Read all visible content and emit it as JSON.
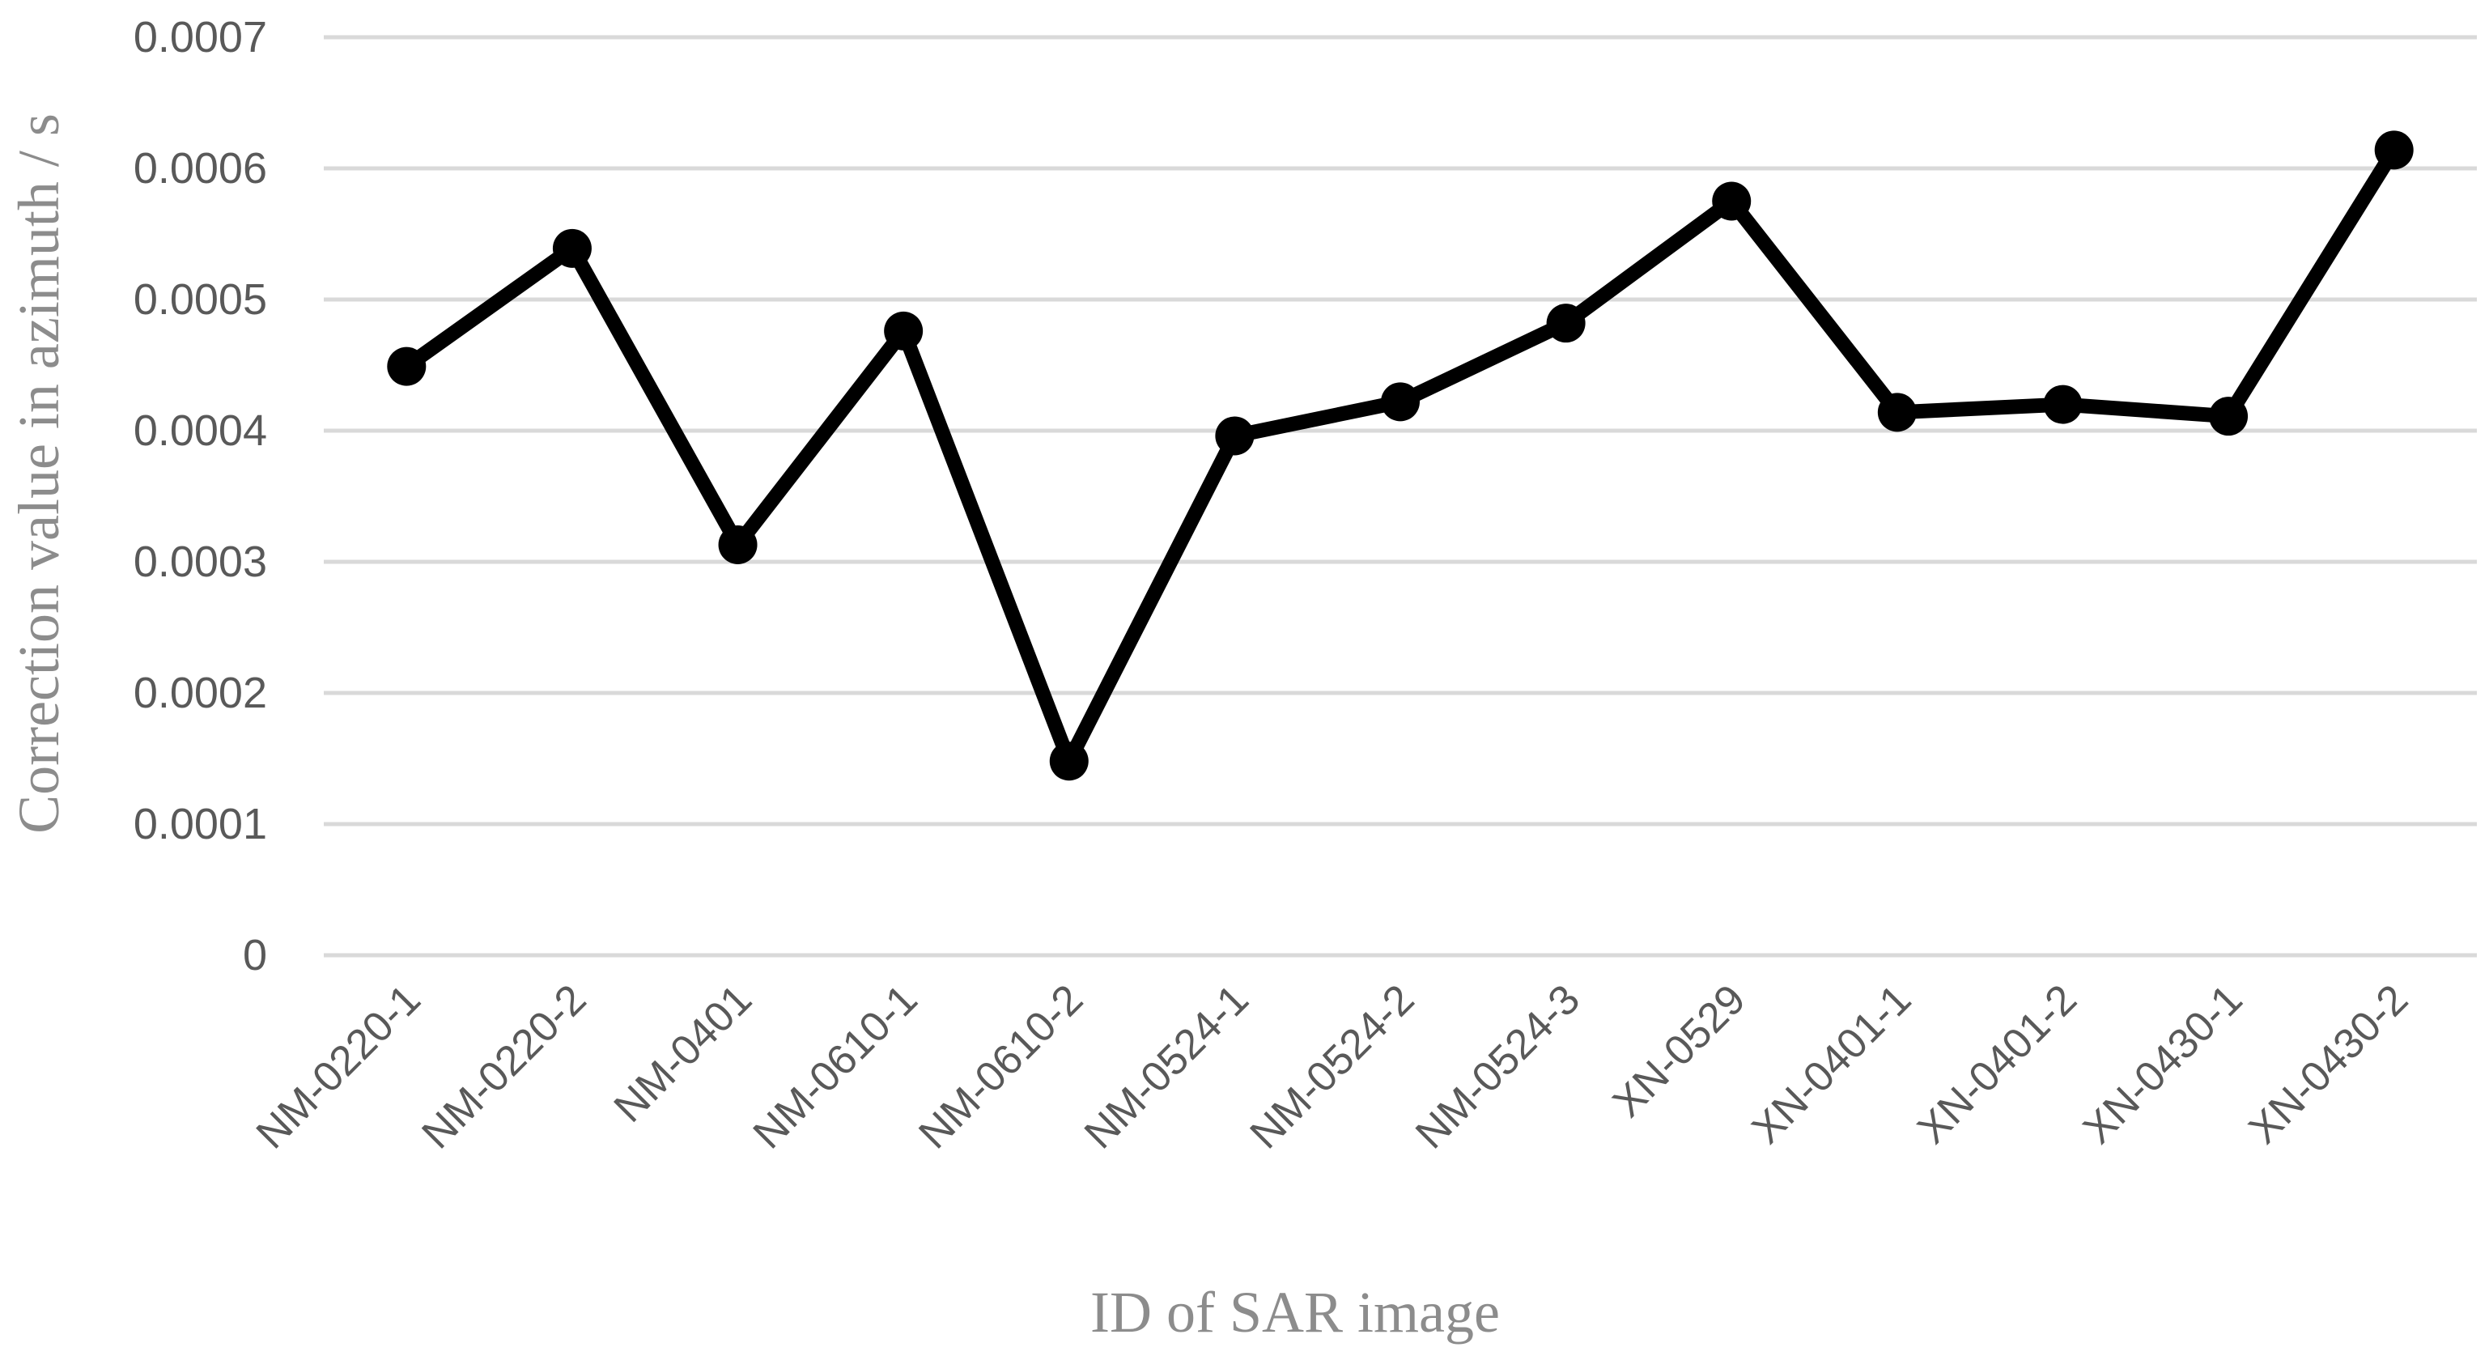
{
  "chart_data": {
    "type": "line",
    "title": "",
    "xlabel": "ID of SAR image",
    "ylabel": "Correction value in azimuth / s",
    "ylim": [
      0,
      0.0007
    ],
    "yticks": [
      "0",
      "0.0001",
      "0.0002",
      "0.0003",
      "0.0004",
      "0.0005",
      "0.0006",
      "0.0007"
    ],
    "grid": true,
    "legend": "none",
    "categories": [
      "NM-0220-1",
      "NM-0220-2",
      "NM-0401",
      "NM-0610-1",
      "NM-0610-2",
      "NM-0524-1",
      "NM-0524-2",
      "NM-0524-3",
      "XN-0529",
      "XN-0401-1",
      "XN-0401-2",
      "XN-0430-1",
      "XN-0430-2"
    ],
    "series": [
      {
        "values": [
          0.000449,
          0.000539,
          0.000313,
          0.000476,
          0.000148,
          0.000396,
          0.000422,
          0.000482,
          0.000575,
          0.000414,
          0.00042,
          0.000411,
          0.000614
        ],
        "color": "#000000"
      }
    ]
  }
}
